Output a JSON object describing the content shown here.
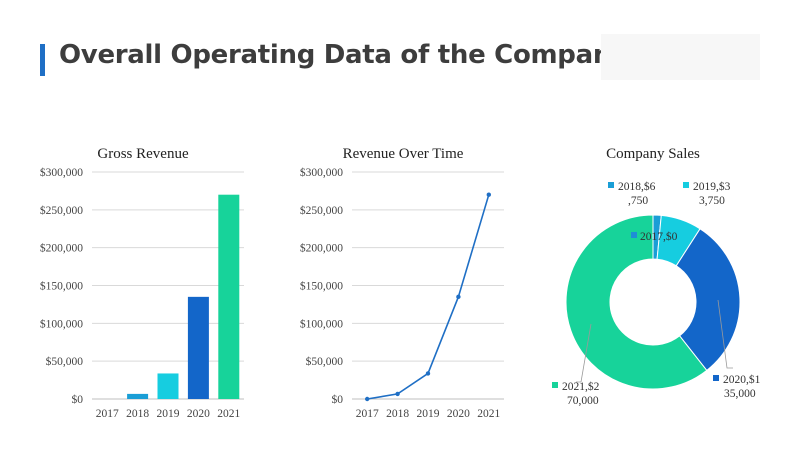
{
  "page": {
    "title": "Overall Operating Data of the Company"
  },
  "colors": {
    "title_accent": "#1f6fc5",
    "c2017": "#1e8fd6",
    "c2018": "#1a9ed6",
    "c2019": "#16cde0",
    "c2020": "#1366c9",
    "c2021": "#17d39a",
    "line": "#1f6fc5"
  },
  "chart_data": [
    {
      "type": "bar",
      "title": "Gross Revenue",
      "categories": [
        "2017",
        "2018",
        "2019",
        "2020",
        "2021"
      ],
      "values": [
        0,
        6750,
        33750,
        135000,
        270000
      ],
      "ylim": [
        0,
        300000
      ],
      "yticks": [
        "$0",
        "$50,000",
        "$100,000",
        "$150,000",
        "$200,000",
        "$250,000",
        "$300,000"
      ],
      "grid": true
    },
    {
      "type": "line",
      "title": "Revenue Over Time",
      "categories": [
        "2017",
        "2018",
        "2019",
        "2020",
        "2021"
      ],
      "values": [
        0,
        6750,
        33750,
        135000,
        270000
      ],
      "ylim": [
        0,
        300000
      ],
      "yticks": [
        "$0",
        "$50,000",
        "$100,000",
        "$150,000",
        "$200,000",
        "$250,000",
        "$300,000"
      ],
      "grid": true
    },
    {
      "type": "pie",
      "title": "Company Sales",
      "categories": [
        "2017",
        "2018",
        "2019",
        "2020",
        "2021"
      ],
      "values": [
        0,
        6750,
        33750,
        135000,
        270000
      ],
      "labels": [
        [
          "2017,$0"
        ],
        [
          "2018,$6",
          ",750"
        ],
        [
          "2019,$3",
          "3,750"
        ],
        [
          "2020,$1",
          "35,000"
        ],
        [
          "2021,$2",
          "70,000"
        ]
      ]
    }
  ]
}
